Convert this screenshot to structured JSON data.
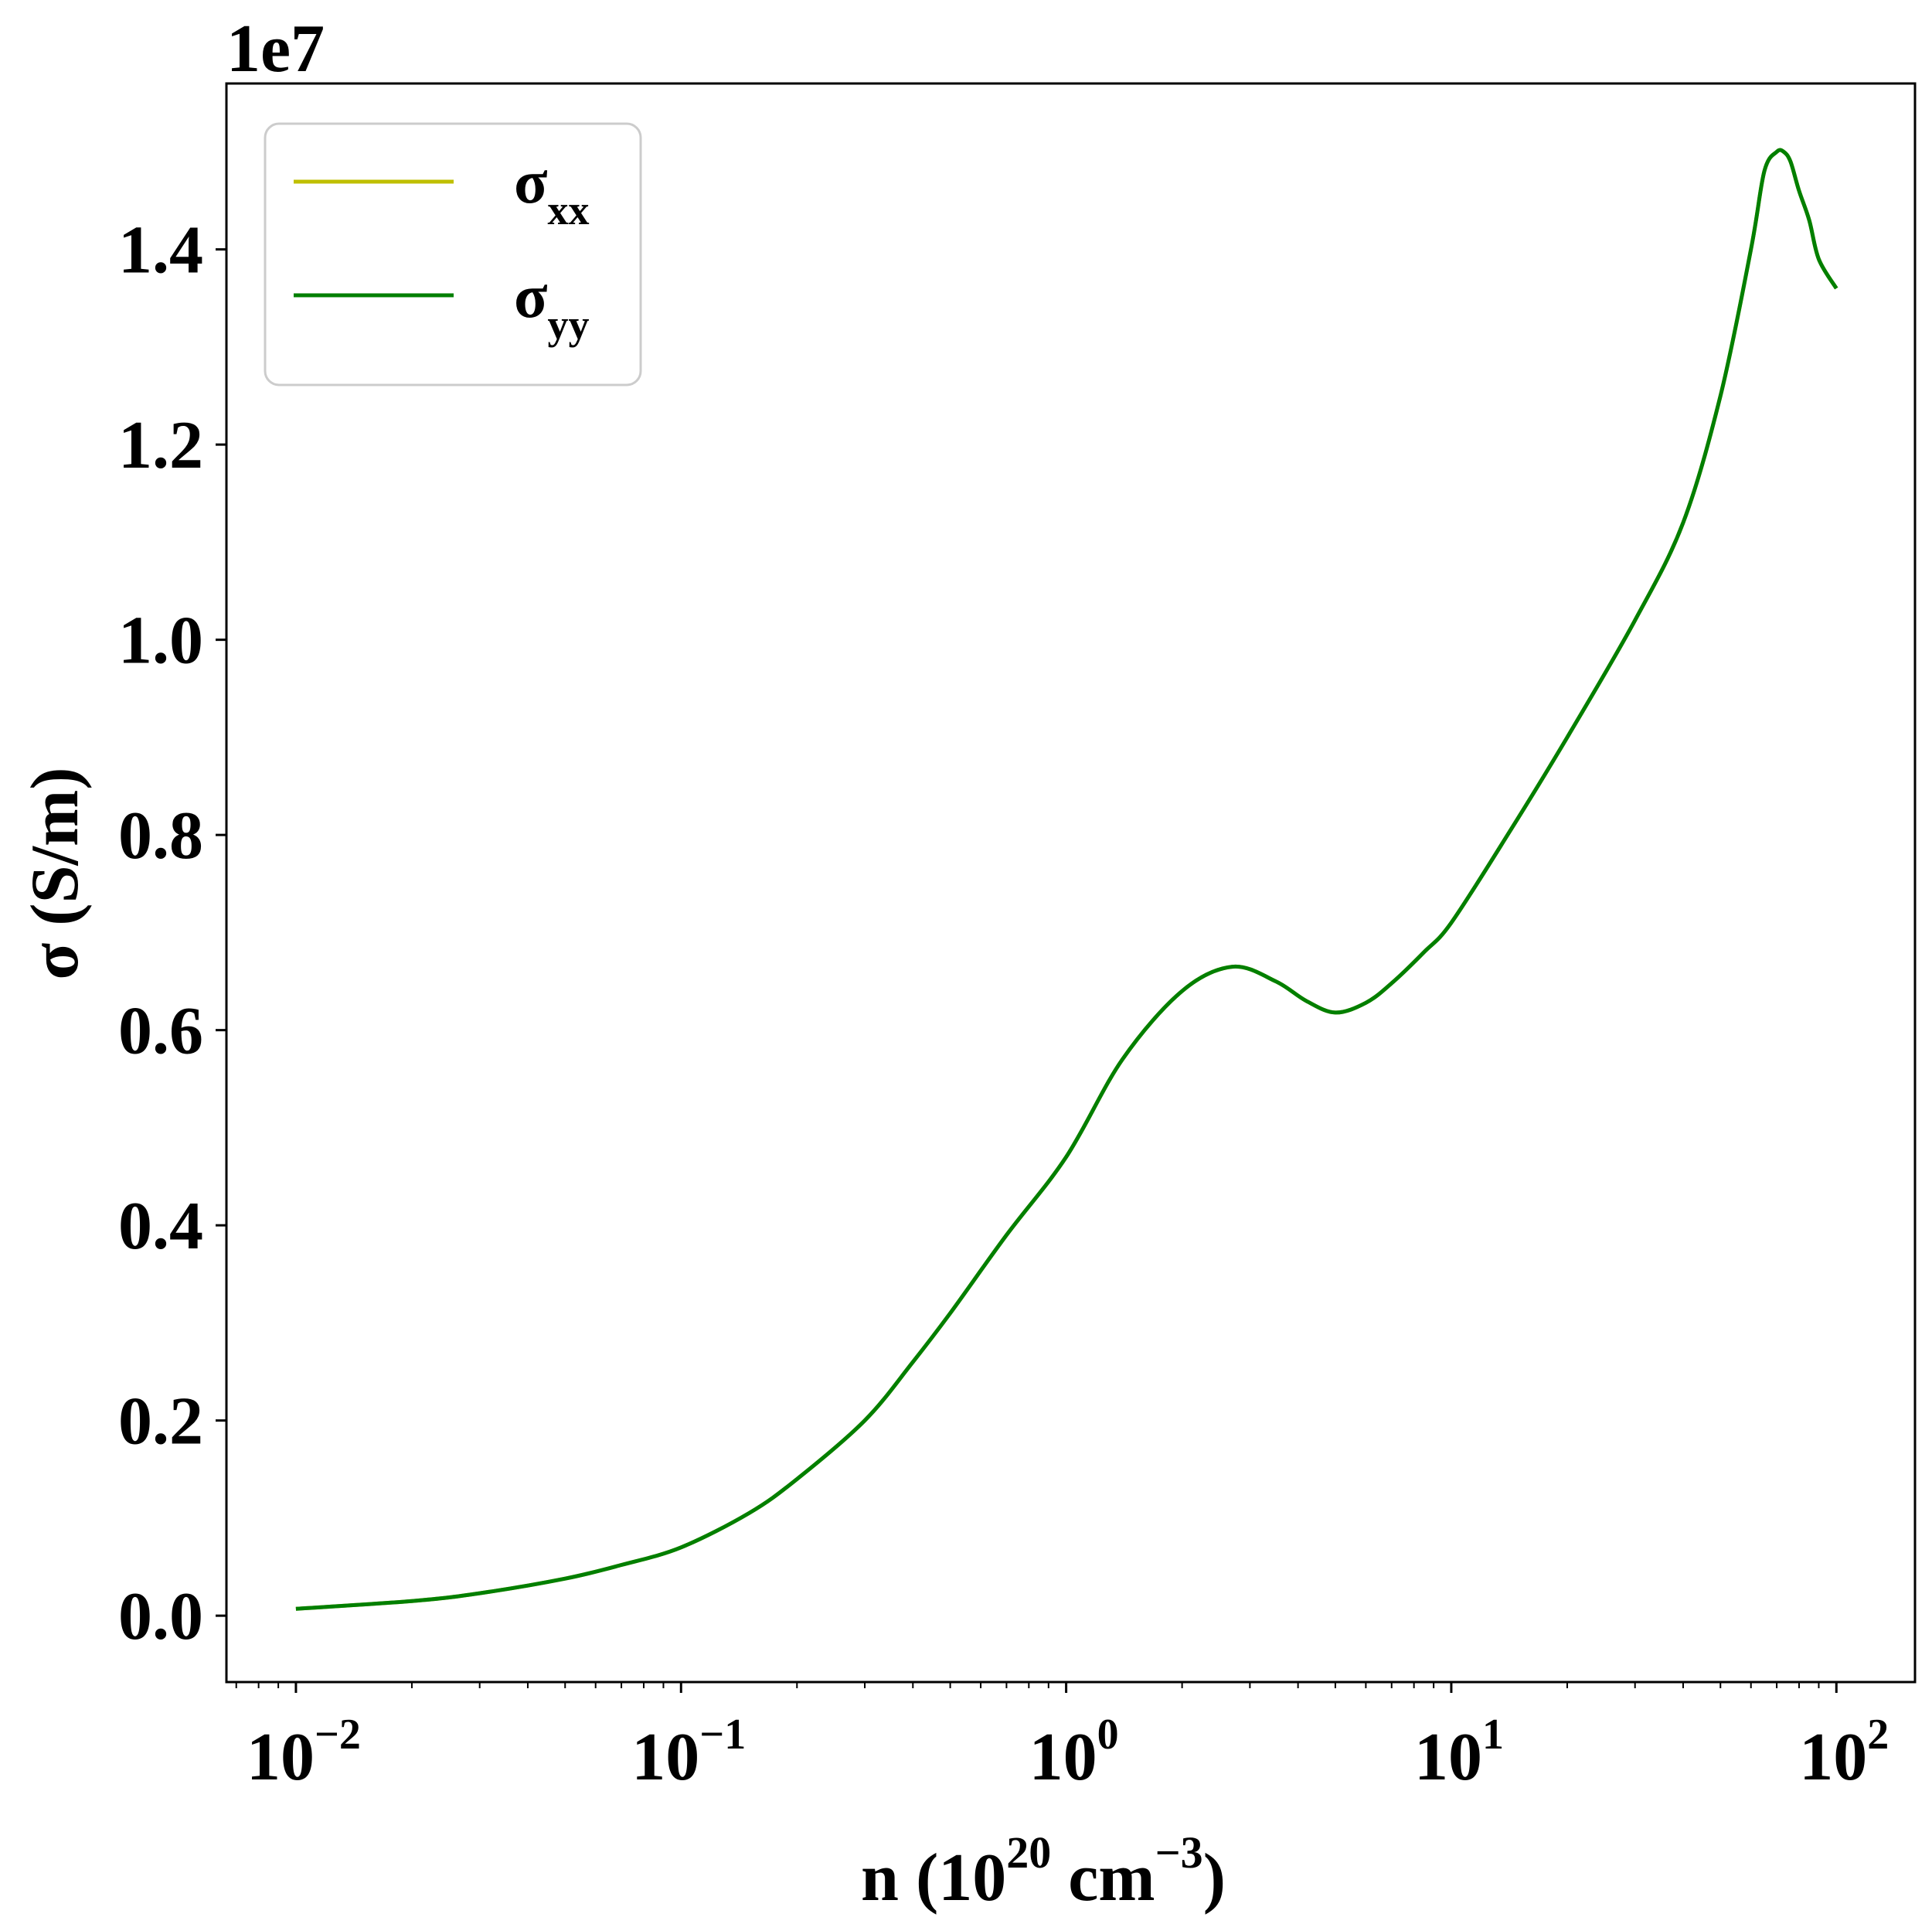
{
  "chart_data": {
    "type": "line",
    "xlabel": {
      "main": "n (10",
      "exp1": "20",
      "mid": " cm",
      "exp2": "−3",
      "end": ")"
    },
    "ylabel": "σ (S/m)",
    "offset_text": "1e7",
    "x_scale": "log",
    "xlim": [
      0.0066,
      160
    ],
    "ylim": [
      -0.068,
      1.57
    ],
    "y_scale_multiplier": 10000000,
    "x_ticks": [
      {
        "base": "10",
        "exp": "−2",
        "value": 0.01
      },
      {
        "base": "10",
        "exp": "−1",
        "value": 0.1
      },
      {
        "base": "10",
        "exp": "0",
        "value": 1
      },
      {
        "base": "10",
        "exp": "1",
        "value": 10
      },
      {
        "base": "10",
        "exp": "2",
        "value": 100
      }
    ],
    "y_ticks": [
      {
        "label": "0.0",
        "value": 0.0
      },
      {
        "label": "0.2",
        "value": 0.2
      },
      {
        "label": "0.4",
        "value": 0.4
      },
      {
        "label": "0.6",
        "value": 0.6
      },
      {
        "label": "0.8",
        "value": 0.8
      },
      {
        "label": "1.0",
        "value": 1.0
      },
      {
        "label": "1.2",
        "value": 1.2
      },
      {
        "label": "1.4",
        "value": 1.4
      }
    ],
    "grid": false,
    "legend": {
      "placement": "top-left"
    },
    "series": [
      {
        "name": "σ",
        "sub": "xx",
        "color": "#bfbf00",
        "x": [
          0.01,
          0.02,
          0.03,
          0.05,
          0.07,
          0.1,
          0.15,
          0.2,
          0.3,
          0.4,
          0.5,
          0.7,
          1.0,
          1.4,
          2.0,
          2.7,
          3.5,
          4.2,
          5.0,
          6.0,
          7.0,
          8.5,
          10,
          14,
          20,
          30,
          40,
          50,
          60,
          65,
          70,
          73,
          76,
          80,
          85,
          90,
          100
        ],
        "y": [
          0.007,
          0.015,
          0.023,
          0.038,
          0.052,
          0.07,
          0.105,
          0.14,
          0.2,
          0.26,
          0.31,
          0.39,
          0.47,
          0.57,
          0.64,
          0.665,
          0.65,
          0.63,
          0.618,
          0.628,
          0.648,
          0.68,
          0.71,
          0.8,
          0.9,
          1.02,
          1.12,
          1.25,
          1.4,
          1.48,
          1.5,
          1.5,
          1.49,
          1.46,
          1.43,
          1.39,
          1.36
        ]
      },
      {
        "name": "σ",
        "sub": "yy",
        "color": "#007f00",
        "x": [
          0.01,
          0.02,
          0.03,
          0.05,
          0.07,
          0.1,
          0.15,
          0.2,
          0.3,
          0.4,
          0.5,
          0.7,
          1.0,
          1.4,
          2.0,
          2.7,
          3.5,
          4.2,
          5.0,
          6.0,
          7.0,
          8.5,
          10,
          14,
          20,
          30,
          40,
          50,
          60,
          65,
          70,
          73,
          76,
          80,
          85,
          90,
          100
        ],
        "y": [
          0.007,
          0.015,
          0.023,
          0.038,
          0.052,
          0.07,
          0.105,
          0.14,
          0.2,
          0.26,
          0.31,
          0.39,
          0.47,
          0.57,
          0.64,
          0.665,
          0.65,
          0.63,
          0.618,
          0.628,
          0.648,
          0.68,
          0.71,
          0.8,
          0.9,
          1.02,
          1.12,
          1.25,
          1.4,
          1.48,
          1.5,
          1.5,
          1.49,
          1.46,
          1.43,
          1.39,
          1.36
        ]
      }
    ]
  }
}
